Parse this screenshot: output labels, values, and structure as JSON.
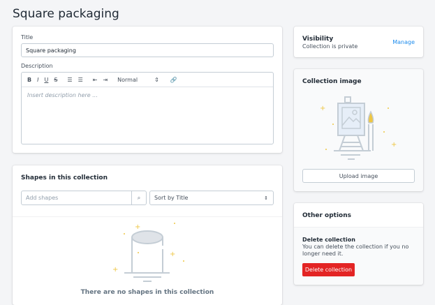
{
  "page": {
    "title": "Square packaging"
  },
  "details": {
    "title_label": "Title",
    "title_value": "Square packaging",
    "description_label": "Description",
    "description_placeholder": "Insert description here ...",
    "toolbar": {
      "bold": "B",
      "italic": "I",
      "underline": "U",
      "strike": "S",
      "format": "Normal"
    }
  },
  "shapes": {
    "heading": "Shapes in this collection",
    "search_placeholder": "Add shapes",
    "sort_value": "Sort by Title",
    "empty_text": "There are no shapes in this collection"
  },
  "visibility": {
    "heading": "Visibility",
    "status": "Collection is private",
    "manage": "Manage"
  },
  "collection_image": {
    "heading": "Collection image",
    "upload": "Upload image"
  },
  "other": {
    "heading": "Other options",
    "delete_heading": "Delete collection",
    "delete_text": "You can delete the collection if you no longer need it.",
    "delete_button": "Delete collection"
  },
  "colors": {
    "accent": "#1f8ded",
    "danger": "#e32424",
    "star": "#eec643"
  }
}
